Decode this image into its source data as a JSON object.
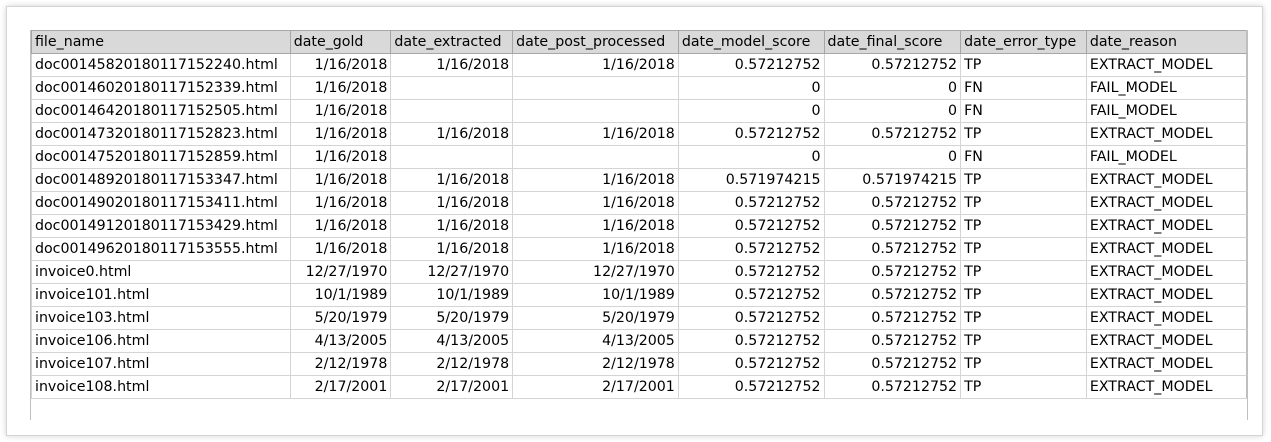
{
  "columns": [
    "file_name",
    "date_gold",
    "date_extracted",
    "date_post_processed",
    "date_model_score",
    "date_final_score",
    "date_error_type",
    "date_reason"
  ],
  "rows": [
    [
      "doc00145820180117152240.html",
      "1/16/2018",
      "1/16/2018",
      "1/16/2018",
      "0.57212752",
      "0.57212752",
      "TP",
      "EXTRACT_MODEL"
    ],
    [
      "doc00146020180117152339.html",
      "1/16/2018",
      "",
      "",
      "0",
      "0",
      "FN",
      "FAIL_MODEL"
    ],
    [
      "doc00146420180117152505.html",
      "1/16/2018",
      "",
      "",
      "0",
      "0",
      "FN",
      "FAIL_MODEL"
    ],
    [
      "doc00147320180117152823.html",
      "1/16/2018",
      "1/16/2018",
      "1/16/2018",
      "0.57212752",
      "0.57212752",
      "TP",
      "EXTRACT_MODEL"
    ],
    [
      "doc00147520180117152859.html",
      "1/16/2018",
      "",
      "",
      "0",
      "0",
      "FN",
      "FAIL_MODEL"
    ],
    [
      "doc00148920180117153347.html",
      "1/16/2018",
      "1/16/2018",
      "1/16/2018",
      "0.571974215",
      "0.571974215",
      "TP",
      "EXTRACT_MODEL"
    ],
    [
      "doc00149020180117153411.html",
      "1/16/2018",
      "1/16/2018",
      "1/16/2018",
      "0.57212752",
      "0.57212752",
      "TP",
      "EXTRACT_MODEL"
    ],
    [
      "doc00149120180117153429.html",
      "1/16/2018",
      "1/16/2018",
      "1/16/2018",
      "0.57212752",
      "0.57212752",
      "TP",
      "EXTRACT_MODEL"
    ],
    [
      "doc00149620180117153555.html",
      "1/16/2018",
      "1/16/2018",
      "1/16/2018",
      "0.57212752",
      "0.57212752",
      "TP",
      "EXTRACT_MODEL"
    ],
    [
      "invoice0.html",
      "12/27/1970",
      "12/27/1970",
      "12/27/1970",
      "0.57212752",
      "0.57212752",
      "TP",
      "EXTRACT_MODEL"
    ],
    [
      "invoice101.html",
      "10/1/1989",
      "10/1/1989",
      "10/1/1989",
      "0.57212752",
      "0.57212752",
      "TP",
      "EXTRACT_MODEL"
    ],
    [
      "invoice103.html",
      "5/20/1979",
      "5/20/1979",
      "5/20/1979",
      "0.57212752",
      "0.57212752",
      "TP",
      "EXTRACT_MODEL"
    ],
    [
      "invoice106.html",
      "4/13/2005",
      "4/13/2005",
      "4/13/2005",
      "0.57212752",
      "0.57212752",
      "TP",
      "EXTRACT_MODEL"
    ],
    [
      "invoice107.html",
      "2/12/1978",
      "2/12/1978",
      "2/12/1978",
      "0.57212752",
      "0.57212752",
      "TP",
      "EXTRACT_MODEL"
    ],
    [
      "invoice108.html",
      "2/17/2001",
      "2/17/2001",
      "2/17/2001",
      "0.57212752",
      "0.57212752",
      "TP",
      "EXTRACT_MODEL"
    ]
  ]
}
